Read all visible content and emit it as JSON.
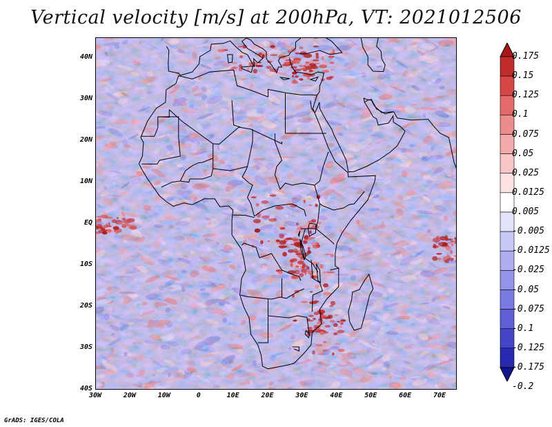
{
  "title": "Vertical velocity [m/s] at 200hPa, VT: 2021012506",
  "footer": "GrADS: IGES/COLA",
  "lat_labels": [
    "40N",
    "30N",
    "20N",
    "10N",
    "EQ",
    "10S",
    "20S",
    "30S",
    "40S"
  ],
  "lon_labels": [
    "30W",
    "20W",
    "10W",
    "0",
    "10E",
    "20E",
    "30E",
    "40E",
    "50E",
    "60E",
    "70E"
  ],
  "colorbar": {
    "labels": [
      "0.175",
      "0.15",
      "0.125",
      "0.1",
      "0.075",
      "0.05",
      "0.025",
      "0.0125",
      "0.005",
      "-0.005",
      "-0.0125",
      "-0.025",
      "-0.05",
      "-0.075",
      "-0.1",
      "-0.125",
      "-0.175",
      "-0.2"
    ],
    "colors": [
      "#a81818",
      "#c02c2c",
      "#d64848",
      "#e26a6a",
      "#ec8c8c",
      "#f3aaaa",
      "#f8c6c6",
      "#fde2e2",
      "#ffffff",
      "#e2e2fb",
      "#c8c8f5",
      "#aeaeef",
      "#9494e9",
      "#7a7ae0",
      "#6060d6",
      "#4444c8",
      "#2828b0",
      "#14148f"
    ]
  },
  "map": {
    "lat_range": [
      -40,
      45
    ],
    "lon_range": [
      -30,
      75
    ],
    "background_noise_palette": [
      "#f3aaaa",
      "#ec8c8c",
      "#fde2e2",
      "#c8c8f5",
      "#aeaeef",
      "#9494e9",
      "#e2e2fb"
    ]
  }
}
